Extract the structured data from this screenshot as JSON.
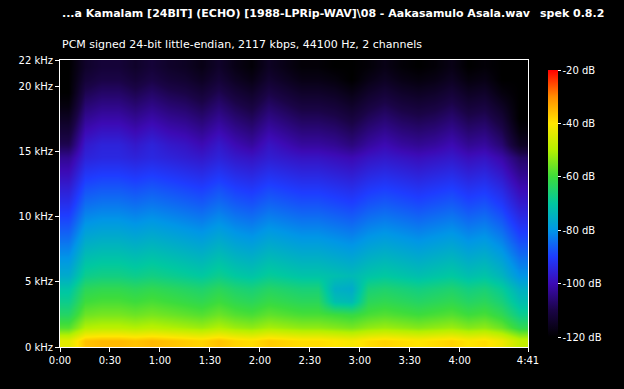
{
  "chart_data": {
    "type": "heatmap",
    "title": "...a Kamalam [24BIT] (ECHO) [1988-LPRip-WAV]\\08 - Aakasamulo Asala.wav",
    "subtitle": "PCM signed 24-bit little-endian, 2117 kbps, 44100 Hz, 2 channels",
    "annotations": [
      {
        "text": "spek 0.8.2"
      }
    ],
    "xlim": [
      0,
      281
    ],
    "xticks": [
      {
        "value": 0,
        "label": "0:00"
      },
      {
        "value": 30,
        "label": "0:30"
      },
      {
        "value": 60,
        "label": "1:00"
      },
      {
        "value": 90,
        "label": "1:30"
      },
      {
        "value": 120,
        "label": "2:00"
      },
      {
        "value": 150,
        "label": "2:30"
      },
      {
        "value": 180,
        "label": "3:00"
      },
      {
        "value": 210,
        "label": "3:30"
      },
      {
        "value": 240,
        "label": "4:00"
      },
      {
        "value": 281,
        "label": "4:41"
      }
    ],
    "ylim": [
      0,
      22
    ],
    "yticks": [
      {
        "value": 0,
        "label": "0 kHz"
      },
      {
        "value": 5,
        "label": "5 kHz"
      },
      {
        "value": 10,
        "label": "10 kHz"
      },
      {
        "value": 15,
        "label": "15 kHz"
      },
      {
        "value": 20,
        "label": "20 kHz"
      },
      {
        "value": 22,
        "label": "22 kHz"
      }
    ],
    "zlim": [
      -120,
      -20
    ],
    "zticks": [
      {
        "value": -20,
        "label": "-20 dB"
      },
      {
        "value": -40,
        "label": "-40 dB"
      },
      {
        "value": -60,
        "label": "-60 dB"
      },
      {
        "value": -80,
        "label": "-80 dB"
      },
      {
        "value": -100,
        "label": "-100 dB"
      },
      {
        "value": -120,
        "label": "-120 dB"
      }
    ],
    "grid": false,
    "x": [
      0,
      10,
      20,
      30,
      40,
      50,
      60,
      70,
      80,
      90,
      100,
      110,
      120,
      130,
      140,
      150,
      160,
      170,
      180,
      190,
      200,
      210,
      220,
      230,
      240,
      250,
      260,
      270,
      281
    ],
    "y": [
      0,
      1,
      2,
      3,
      4,
      5,
      6,
      7,
      8,
      9,
      10,
      11,
      12,
      13,
      14,
      15,
      16,
      17,
      18,
      19,
      20,
      21,
      22
    ],
    "z": [
      [
        -44,
        -36,
        -35,
        -35,
        -36,
        -35,
        -36,
        -37,
        -38,
        -36,
        -38,
        -39,
        -37,
        -38,
        -39,
        -39,
        -40,
        -41,
        -39,
        -38,
        -39,
        -40,
        -39,
        -38,
        -40,
        -39,
        -42,
        -48
      ],
      [
        -58,
        -50,
        -49,
        -49,
        -50,
        -49,
        -50,
        -51,
        -52,
        -50,
        -52,
        -53,
        -51,
        -52,
        -53,
        -53,
        -54,
        -55,
        -53,
        -52,
        -53,
        -54,
        -53,
        -52,
        -54,
        -53,
        -56,
        -62
      ],
      [
        -64,
        -56,
        -55,
        -55,
        -56,
        -55,
        -56,
        -57,
        -58,
        -56,
        -58,
        -59,
        -57,
        -58,
        -59,
        -59,
        -60,
        -61,
        -59,
        -58,
        -59,
        -60,
        -59,
        -58,
        -60,
        -59,
        -62,
        -68
      ],
      [
        -68,
        -60,
        -59,
        -59,
        -60,
        -59,
        -60,
        -61,
        -62,
        -60,
        -62,
        -63,
        -61,
        -62,
        -63,
        -63,
        -72,
        -73,
        -63,
        -62,
        -63,
        -64,
        -63,
        -62,
        -64,
        -63,
        -66,
        -72
      ],
      [
        -71,
        -63,
        -62,
        -62,
        -63,
        -62,
        -63,
        -64,
        -65,
        -63,
        -65,
        -66,
        -64,
        -65,
        -66,
        -66,
        -75,
        -76,
        -66,
        -65,
        -66,
        -67,
        -66,
        -65,
        -67,
        -66,
        -69,
        -75
      ],
      [
        -76,
        -68,
        -67,
        -67,
        -68,
        -67,
        -68,
        -69,
        -70,
        -68,
        -70,
        -71,
        -69,
        -70,
        -71,
        -71,
        -72,
        -73,
        -71,
        -70,
        -71,
        -72,
        -71,
        -70,
        -72,
        -71,
        -74,
        -80
      ],
      [
        -79,
        -71,
        -70,
        -70,
        -71,
        -70,
        -71,
        -72,
        -73,
        -71,
        -73,
        -74,
        -72,
        -73,
        -74,
        -74,
        -75,
        -76,
        -74,
        -73,
        -74,
        -75,
        -74,
        -73,
        -75,
        -74,
        -77,
        -83
      ],
      [
        -82,
        -74,
        -73,
        -73,
        -74,
        -73,
        -74,
        -75,
        -76,
        -74,
        -76,
        -77,
        -75,
        -76,
        -77,
        -77,
        -78,
        -79,
        -77,
        -76,
        -77,
        -78,
        -77,
        -76,
        -78,
        -77,
        -80,
        -86
      ],
      [
        -85,
        -77,
        -76,
        -76,
        -77,
        -76,
        -77,
        -78,
        -79,
        -77,
        -79,
        -80,
        -78,
        -79,
        -80,
        -80,
        -81,
        -82,
        -80,
        -79,
        -80,
        -81,
        -80,
        -79,
        -81,
        -80,
        -83,
        -89
      ],
      [
        -88,
        -80,
        -79,
        -79,
        -80,
        -79,
        -80,
        -81,
        -82,
        -80,
        -82,
        -83,
        -81,
        -82,
        -83,
        -83,
        -84,
        -85,
        -83,
        -82,
        -83,
        -84,
        -83,
        -82,
        -84,
        -83,
        -86,
        -92
      ],
      [
        -91,
        -83,
        -82,
        -82,
        -83,
        -82,
        -83,
        -84,
        -85,
        -83,
        -85,
        -86,
        -84,
        -85,
        -86,
        -86,
        -87,
        -88,
        -86,
        -85,
        -86,
        -87,
        -86,
        -85,
        -87,
        -86,
        -89,
        -95
      ],
      [
        -94,
        -86,
        -85,
        -85,
        -86,
        -85,
        -86,
        -87,
        -88,
        -86,
        -88,
        -89,
        -87,
        -88,
        -89,
        -89,
        -90,
        -91,
        -89,
        -88,
        -89,
        -90,
        -89,
        -88,
        -90,
        -89,
        -92,
        -98
      ],
      [
        -97,
        -89,
        -88,
        -88,
        -89,
        -88,
        -89,
        -90,
        -91,
        -89,
        -91,
        -92,
        -90,
        -91,
        -92,
        -92,
        -93,
        -94,
        -92,
        -91,
        -92,
        -93,
        -92,
        -91,
        -93,
        -92,
        -95,
        -101
      ],
      [
        -100,
        -92,
        -91,
        -91,
        -92,
        -91,
        -92,
        -93,
        -94,
        -92,
        -94,
        -95,
        -93,
        -94,
        -95,
        -95,
        -96,
        -97,
        -95,
        -94,
        -95,
        -96,
        -95,
        -94,
        -96,
        -95,
        -98,
        -104
      ],
      [
        -103,
        -95,
        -94,
        -94,
        -95,
        -94,
        -95,
        -96,
        -97,
        -95,
        -97,
        -98,
        -96,
        -97,
        -98,
        -98,
        -99,
        -100,
        -98,
        -97,
        -98,
        -99,
        -98,
        -97,
        -99,
        -98,
        -101,
        -107
      ],
      [
        -109,
        -97,
        -95,
        -95,
        -97,
        -95,
        -97,
        -98,
        -100,
        -97,
        -100,
        -102,
        -98,
        -100,
        -102,
        -102,
        -103,
        -105,
        -102,
        -100,
        -102,
        -103,
        -102,
        -100,
        -103,
        -102,
        -106,
        -115
      ],
      [
        -112,
        -100,
        -98,
        -98,
        -100,
        -98,
        -100,
        -101,
        -103,
        -100,
        -103,
        -105,
        -101,
        -103,
        -105,
        -105,
        -106,
        -108,
        -105,
        -103,
        -105,
        -106,
        -105,
        -103,
        -106,
        -105,
        -109,
        -118
      ],
      [
        -115,
        -103,
        -101,
        -101,
        -103,
        -101,
        -103,
        -104,
        -106,
        -103,
        -106,
        -108,
        -104,
        -106,
        -108,
        -108,
        -109,
        -111,
        -108,
        -106,
        -108,
        -109,
        -108,
        -106,
        -109,
        -108,
        -112,
        -120
      ],
      [
        -118,
        -106,
        -104,
        -104,
        -106,
        -104,
        -106,
        -107,
        -109,
        -106,
        -109,
        -111,
        -107,
        -109,
        -111,
        -111,
        -112,
        -114,
        -111,
        -109,
        -111,
        -112,
        -111,
        -109,
        -112,
        -111,
        -115,
        -120
      ],
      [
        -120,
        -109,
        -107,
        -107,
        -109,
        -107,
        -109,
        -110,
        -112,
        -109,
        -112,
        -114,
        -110,
        -112,
        -114,
        -114,
        -115,
        -117,
        -114,
        -112,
        -114,
        -115,
        -114,
        -112,
        -115,
        -114,
        -118,
        -120
      ],
      [
        -120,
        -112,
        -110,
        -110,
        -112,
        -110,
        -112,
        -113,
        -115,
        -112,
        -115,
        -117,
        -113,
        -115,
        -117,
        -117,
        -118,
        -120,
        -117,
        -115,
        -117,
        -118,
        -117,
        -115,
        -118,
        -117,
        -120,
        -120
      ],
      [
        -120,
        -114,
        -112,
        -112,
        -114,
        -112,
        -114,
        -115,
        -117,
        -114,
        -117,
        -119,
        -115,
        -117,
        -119,
        -119,
        -120,
        -120,
        -119,
        -117,
        -119,
        -120,
        -119,
        -117,
        -120,
        -119,
        -120,
        -120
      ]
    ]
  }
}
